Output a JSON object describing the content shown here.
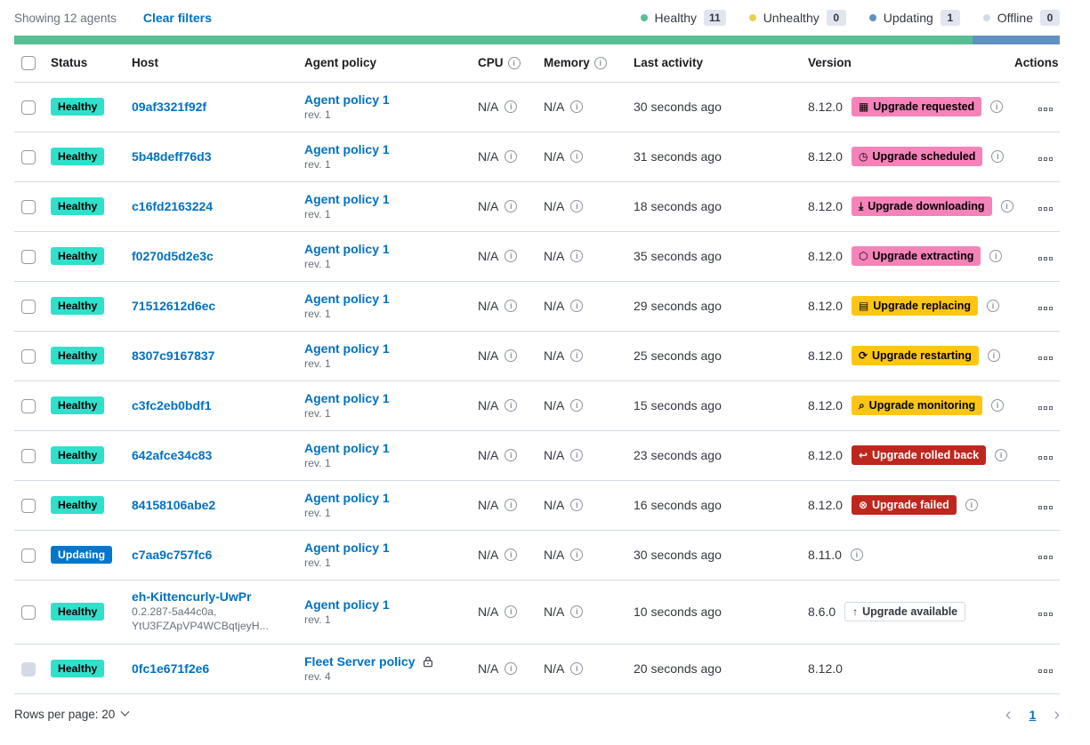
{
  "header": {
    "showing": "Showing 12 agents",
    "clear_filters": "Clear filters",
    "legend": [
      {
        "label": "Healthy",
        "count": "11",
        "color": "#57be94"
      },
      {
        "label": "Unhealthy",
        "count": "0",
        "color": "#e7cf55"
      },
      {
        "label": "Updating",
        "count": "1",
        "color": "#6092c0"
      },
      {
        "label": "Offline",
        "count": "0",
        "color": "#d3dae6"
      }
    ],
    "progress_bar": {
      "segments": [
        {
          "color": "#57be94",
          "percent": 91.7
        },
        {
          "color": "#6092c0",
          "percent": 8.3
        }
      ]
    }
  },
  "colors": {
    "healthy_badge": "#2fe0cb",
    "updating_badge": "#0077cc",
    "upgrade_pink": "#f583b9",
    "upgrade_yellow": "#fec514",
    "upgrade_red": "#bd271e",
    "link_blue": "#0071c2"
  },
  "icon_glyphs": {
    "calendar": "▦",
    "clock": "◷",
    "download": "⤓",
    "package": "⬡",
    "document": "▤",
    "refresh": "⟳",
    "inspect": "⌕",
    "return": "↩",
    "cross": "⊗",
    "arrow-up": "↑"
  },
  "table": {
    "columns": [
      "Status",
      "Host",
      "Agent policy",
      "CPU",
      "Memory",
      "Last activity",
      "Version",
      "Actions"
    ],
    "rows": [
      {
        "checkbox": "enabled",
        "status": {
          "label": "Healthy",
          "type": "healthy"
        },
        "host": {
          "name": "09af3321f92f",
          "sub": []
        },
        "policy": {
          "name": "Agent policy 1",
          "rev": "rev. 1",
          "locked": false
        },
        "cpu": "N/A",
        "memory": "N/A",
        "last_activity": "30 seconds ago",
        "version": "8.12.0",
        "upgrade": {
          "label": "Upgrade requested",
          "style": "accent",
          "icon": "calendar"
        },
        "version_info": true,
        "tall": false
      },
      {
        "checkbox": "enabled",
        "status": {
          "label": "Healthy",
          "type": "healthy"
        },
        "host": {
          "name": "5b48deff76d3",
          "sub": []
        },
        "policy": {
          "name": "Agent policy 1",
          "rev": "rev. 1",
          "locked": false
        },
        "cpu": "N/A",
        "memory": "N/A",
        "last_activity": "31 seconds ago",
        "version": "8.12.0",
        "upgrade": {
          "label": "Upgrade scheduled",
          "style": "accent",
          "icon": "clock"
        },
        "version_info": true,
        "tall": false
      },
      {
        "checkbox": "enabled",
        "status": {
          "label": "Healthy",
          "type": "healthy"
        },
        "host": {
          "name": "c16fd2163224",
          "sub": []
        },
        "policy": {
          "name": "Agent policy 1",
          "rev": "rev. 1",
          "locked": false
        },
        "cpu": "N/A",
        "memory": "N/A",
        "last_activity": "18 seconds ago",
        "version": "8.12.0",
        "upgrade": {
          "label": "Upgrade downloading",
          "style": "accent",
          "icon": "download"
        },
        "version_info": true,
        "tall": false
      },
      {
        "checkbox": "enabled",
        "status": {
          "label": "Healthy",
          "type": "healthy"
        },
        "host": {
          "name": "f0270d5d2e3c",
          "sub": []
        },
        "policy": {
          "name": "Agent policy 1",
          "rev": "rev. 1",
          "locked": false
        },
        "cpu": "N/A",
        "memory": "N/A",
        "last_activity": "35 seconds ago",
        "version": "8.12.0",
        "upgrade": {
          "label": "Upgrade extracting",
          "style": "accent",
          "icon": "package"
        },
        "version_info": true,
        "tall": false
      },
      {
        "checkbox": "enabled",
        "status": {
          "label": "Healthy",
          "type": "healthy"
        },
        "host": {
          "name": "71512612d6ec",
          "sub": []
        },
        "policy": {
          "name": "Agent policy 1",
          "rev": "rev. 1",
          "locked": false
        },
        "cpu": "N/A",
        "memory": "N/A",
        "last_activity": "29 seconds ago",
        "version": "8.12.0",
        "upgrade": {
          "label": "Upgrade replacing",
          "style": "warning",
          "icon": "document"
        },
        "version_info": true,
        "tall": false
      },
      {
        "checkbox": "enabled",
        "status": {
          "label": "Healthy",
          "type": "healthy"
        },
        "host": {
          "name": "8307c9167837",
          "sub": []
        },
        "policy": {
          "name": "Agent policy 1",
          "rev": "rev. 1",
          "locked": false
        },
        "cpu": "N/A",
        "memory": "N/A",
        "last_activity": "25 seconds ago",
        "version": "8.12.0",
        "upgrade": {
          "label": "Upgrade restarting",
          "style": "warning",
          "icon": "refresh"
        },
        "version_info": true,
        "tall": false
      },
      {
        "checkbox": "enabled",
        "status": {
          "label": "Healthy",
          "type": "healthy"
        },
        "host": {
          "name": "c3fc2eb0bdf1",
          "sub": []
        },
        "policy": {
          "name": "Agent policy 1",
          "rev": "rev. 1",
          "locked": false
        },
        "cpu": "N/A",
        "memory": "N/A",
        "last_activity": "15 seconds ago",
        "version": "8.12.0",
        "upgrade": {
          "label": "Upgrade monitoring",
          "style": "warning",
          "icon": "inspect"
        },
        "version_info": true,
        "tall": false
      },
      {
        "checkbox": "enabled",
        "status": {
          "label": "Healthy",
          "type": "healthy"
        },
        "host": {
          "name": "642afce34c83",
          "sub": []
        },
        "policy": {
          "name": "Agent policy 1",
          "rev": "rev. 1",
          "locked": false
        },
        "cpu": "N/A",
        "memory": "N/A",
        "last_activity": "23 seconds ago",
        "version": "8.12.0",
        "upgrade": {
          "label": "Upgrade rolled back",
          "style": "danger",
          "icon": "return"
        },
        "version_info": true,
        "tall": false
      },
      {
        "checkbox": "enabled",
        "status": {
          "label": "Healthy",
          "type": "healthy"
        },
        "host": {
          "name": "84158106abe2",
          "sub": []
        },
        "policy": {
          "name": "Agent policy 1",
          "rev": "rev. 1",
          "locked": false
        },
        "cpu": "N/A",
        "memory": "N/A",
        "last_activity": "16 seconds ago",
        "version": "8.12.0",
        "upgrade": {
          "label": "Upgrade failed",
          "style": "danger",
          "icon": "cross"
        },
        "version_info": true,
        "tall": false
      },
      {
        "checkbox": "enabled",
        "status": {
          "label": "Updating",
          "type": "updating"
        },
        "host": {
          "name": "c7aa9c757fc6",
          "sub": []
        },
        "policy": {
          "name": "Agent policy 1",
          "rev": "rev. 1",
          "locked": false
        },
        "cpu": "N/A",
        "memory": "N/A",
        "last_activity": "30 seconds ago",
        "version": "8.11.0",
        "upgrade": null,
        "version_info": true,
        "tall": false
      },
      {
        "checkbox": "enabled",
        "status": {
          "label": "Healthy",
          "type": "healthy"
        },
        "host": {
          "name": "eh-Kittencurly-UwPr",
          "sub": [
            "0.2.287-5a44c0a,",
            "YtU3FZApVP4WCBqtjeyH..."
          ]
        },
        "policy": {
          "name": "Agent policy 1",
          "rev": "rev. 1",
          "locked": false
        },
        "cpu": "N/A",
        "memory": "N/A",
        "last_activity": "10 seconds ago",
        "version": "8.6.0",
        "upgrade": {
          "label": "Upgrade available",
          "style": "hollow",
          "icon": "arrow-up"
        },
        "version_info": false,
        "tall": true
      },
      {
        "checkbox": "disabled",
        "status": {
          "label": "Healthy",
          "type": "healthy"
        },
        "host": {
          "name": "0fc1e671f2e6",
          "sub": []
        },
        "policy": {
          "name": "Fleet Server policy",
          "rev": "rev. 4",
          "locked": true
        },
        "cpu": "N/A",
        "memory": "N/A",
        "last_activity": "20 seconds ago",
        "version": "8.12.0",
        "upgrade": null,
        "version_info": false,
        "tall": false
      }
    ]
  },
  "footer": {
    "rows_per_page": "Rows per page: 20",
    "page": "1",
    "prev": "‹",
    "next": "›"
  }
}
